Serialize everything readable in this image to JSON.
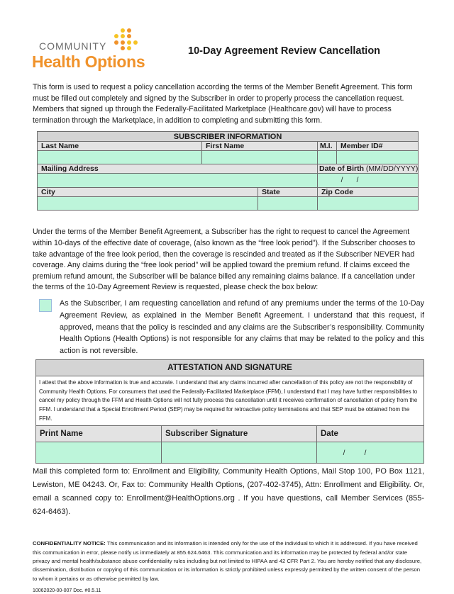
{
  "logo": {
    "line1": "COMMUNITY",
    "line2": "Health Options",
    "brand_orange": "#f0922a",
    "brand_yellow": "#f6c324"
  },
  "title": "10-Day Agreement Review Cancellation",
  "intro": "This form is used to request a policy cancellation according the terms of the Member Benefit Agreement. This form must be filled out completely and signed by the Subscriber in order to properly process the cancellation request. Members that signed up through the Federally-Facilitated Marketplace (Healthcare.gov) will have to process termination through the Marketplace, in addition to completing and submitting this form.",
  "subscriber": {
    "header": "SUBSCRIBER INFORMATION",
    "last_name": "Last Name",
    "first_name": "First Name",
    "mi": "M.I.",
    "member_id": "Member ID#",
    "mailing_address": "Mailing Address",
    "dob": "Date of Birth",
    "dob_format": "(MM/DD/YYYY)",
    "city": "City",
    "state": "State",
    "zip": "Zip Code",
    "date_sep": "/"
  },
  "terms": "Under the terms of the Member Benefit Agreement, a Subscriber has the right to request to cancel the Agreement within 10-days of the effective date of coverage, (also known as the “free look period”). If the Subscriber chooses to take advantage of the free look period, then the coverage is rescinded and treated as if the Subscriber NEVER had coverage. Any claims during the “free look period” will be applied toward the premium refund. If claims exceed the premium refund amount, the Subscriber will be balance billed any remaining claims balance. If a cancellation under the terms of the 10-Day Agreement Review is requested, please check the box below:",
  "checkbox_text": "As the Subscriber, I am requesting cancellation and refund of any premiums under the terms of the 10-Day Agreement Review, as explained in the Member Benefit Agreement. I understand that this request, if approved, means that the policy is rescinded and any claims are the Subscriber’s responsibility. Community Health Options (Health Options) is not responsible for any claims that may be related to the policy and this action is not reversible.",
  "attestation": {
    "header": "ATTESTATION AND SIGNATURE",
    "text": "I attest that the above information is true and accurate. I understand that any claims incurred after cancellation of this policy are not the responsibility of Community Health Options. For consumers that used the Federally-Facilitated Marketplace (FFM), I understand that I may have further responsibilities to cancel my policy through the FFM and Health Options will not fully process this cancellation until it receives confirmation of cancellation of policy from the FFM. I understand that a Special Enrollment Period (SEP) may be required for retroactive policy terminations and that SEP must be obtained from the FFM.",
    "print_name": "Print Name",
    "signature": "Subscriber Signature",
    "date": "Date",
    "date_sep": "/"
  },
  "mail": "Mail this completed form to: Enrollment and Eligibility, Community Health Options, Mail Stop 100, PO Box 1121, Lewiston, ME 04243. Or, Fax to: Community Health Options, (207-402-3745), Attn: Enrollment and Eligibility. Or, email a scanned copy to: Enrollment@HealthOptions.org . If you have questions, call Member Services (855-624-6463).",
  "confidentiality": {
    "label": "CONFIDENTIALITY NOTICE:",
    "text": " This communication and its information is intended only for the use of the individual to which it is addressed. If you have received this communication in error, please notify us immediately at 855.624.6463. This communication and its information may be protected by federal and/or state privacy and mental health/substance abuse confidentiality rules including but not limited to HIPAA and 42 CFR Part 2.  You are hereby notified that any disclosure, dissemination, distribution or copying of this communication or its information is strictly prohibited unless expressly permitted by the written consent of the person to whom it pertains or as otherwise permitted by law."
  },
  "doc_number": "10062020-00-007 Doc. #0.5.11"
}
